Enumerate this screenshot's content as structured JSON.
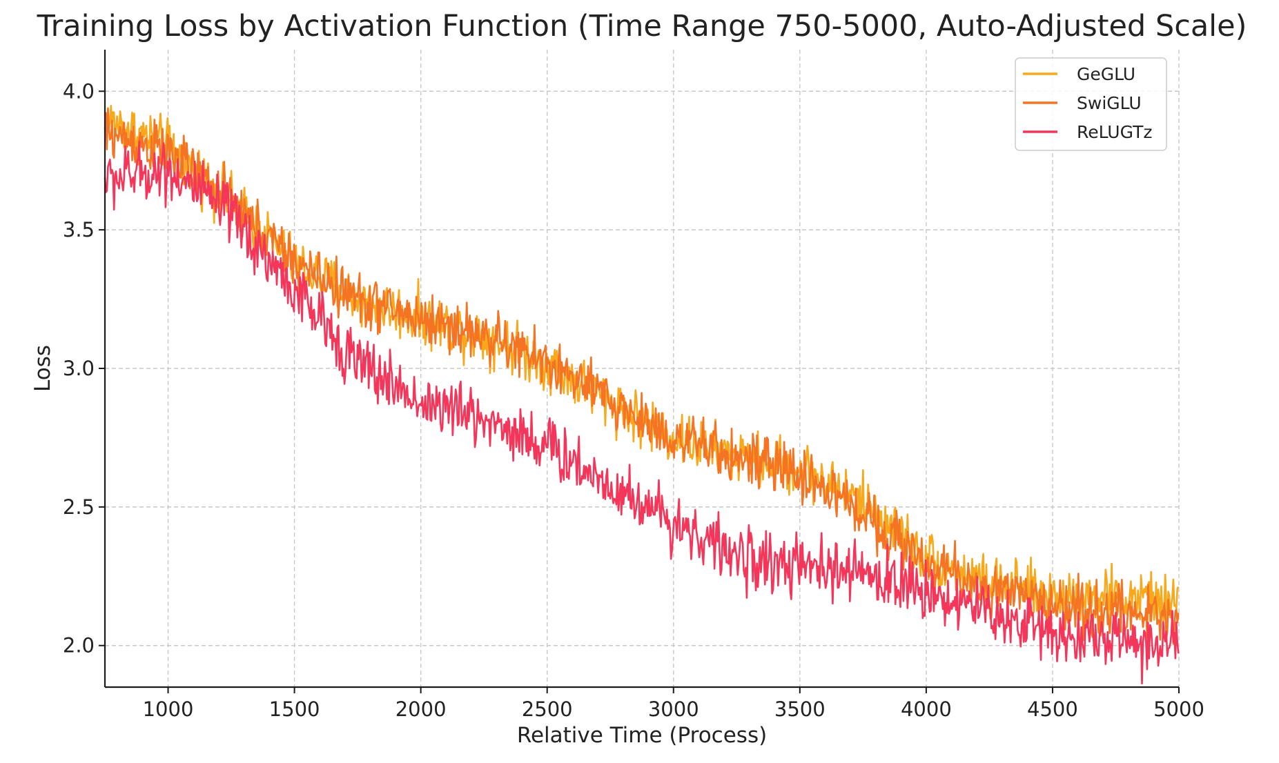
{
  "colors": {
    "background": "#ffffff",
    "GeGLU": "#f7a81b",
    "SwiGLU": "#f57424",
    "ReLUGTz": "#f4365a",
    "grid": "#c8c8c8",
    "axis": "#1a1a1a"
  },
  "chart_data": {
    "type": "line",
    "title": "Training Loss by Activation Function (Time Range 750-5000, Auto-Adjusted Scale)",
    "xlabel": "Relative Time (Process)",
    "ylabel": "Loss",
    "xlim": [
      750,
      5000
    ],
    "ylim": [
      1.85,
      4.15
    ],
    "x_ticks": [
      1000,
      1500,
      2000,
      2500,
      3000,
      3500,
      4000,
      4500,
      5000
    ],
    "x_tick_labels": [
      "1000",
      "1500",
      "2000",
      "2500",
      "3000",
      "3500",
      "4000",
      "4500",
      "5000"
    ],
    "y_ticks": [
      2.0,
      2.5,
      3.0,
      3.5,
      4.0
    ],
    "y_tick_labels": [
      "2.0",
      "2.5",
      "3.0",
      "3.5",
      "4.0"
    ],
    "grid": true,
    "legend_position": "top-right",
    "noise_note": "each series is a noisy trace; values are sampled every 250 units (trend), amplitude approx +/-0.1",
    "x": [
      750,
      1000,
      1250,
      1500,
      1750,
      2000,
      2250,
      2500,
      2750,
      3000,
      3250,
      3500,
      3750,
      4000,
      4250,
      4500,
      4750,
      5000
    ],
    "series": [
      {
        "name": "GeGLU",
        "color": "#f7a81b",
        "noise": 0.09,
        "values": [
          3.9,
          3.8,
          3.6,
          3.38,
          3.25,
          3.18,
          3.12,
          3.02,
          2.88,
          2.75,
          2.68,
          2.64,
          2.52,
          2.32,
          2.22,
          2.18,
          2.18,
          2.15
        ]
      },
      {
        "name": "SwiGLU",
        "color": "#f57424",
        "noise": 0.09,
        "values": [
          3.85,
          3.78,
          3.6,
          3.38,
          3.25,
          3.18,
          3.12,
          3.02,
          2.88,
          2.75,
          2.68,
          2.62,
          2.48,
          2.3,
          2.2,
          2.15,
          2.12,
          2.1
        ]
      },
      {
        "name": "ReLUGTz",
        "color": "#f4365a",
        "noise": 0.1,
        "values": [
          3.68,
          3.72,
          3.55,
          3.28,
          3.02,
          2.88,
          2.82,
          2.72,
          2.58,
          2.45,
          2.32,
          2.28,
          2.26,
          2.2,
          2.12,
          2.05,
          2.02,
          2.0
        ]
      }
    ]
  }
}
